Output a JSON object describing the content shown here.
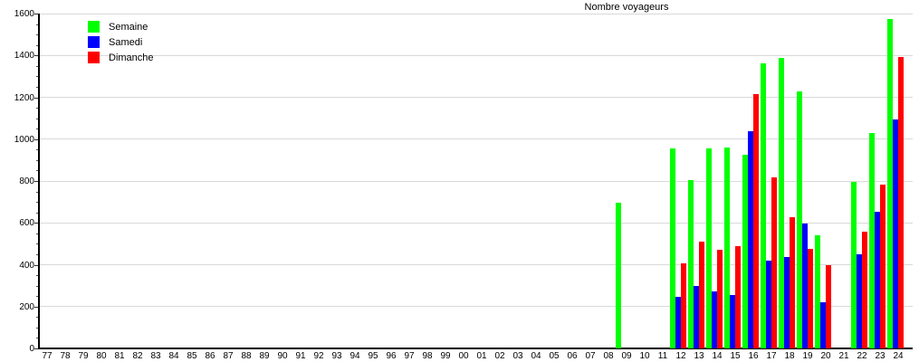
{
  "title": "Nombre voyageurs",
  "chart_data": {
    "type": "bar",
    "title": "Nombre voyageurs",
    "xlabel": "",
    "ylabel": "",
    "ylim": [
      0,
      1600
    ],
    "ytick_step": 200,
    "yminor_step": 50,
    "grid": "horizontal",
    "legend_position": "top-left",
    "grid_color": "#d9d9d9",
    "axis_color": "#000000",
    "categories": [
      "77",
      "78",
      "79",
      "80",
      "81",
      "82",
      "83",
      "84",
      "85",
      "86",
      "87",
      "88",
      "89",
      "90",
      "91",
      "92",
      "93",
      "94",
      "95",
      "96",
      "97",
      "98",
      "99",
      "00",
      "01",
      "02",
      "03",
      "04",
      "05",
      "06",
      "07",
      "08",
      "09",
      "10",
      "11",
      "12",
      "13",
      "14",
      "15",
      "16",
      "17",
      "18",
      "19",
      "20",
      "21",
      "22",
      "23",
      "24"
    ],
    "series": [
      {
        "name": "Semaine",
        "color": "#00ff00",
        "values": [
          0,
          0,
          0,
          0,
          0,
          0,
          0,
          0,
          0,
          0,
          0,
          0,
          0,
          0,
          0,
          0,
          0,
          0,
          0,
          0,
          0,
          0,
          0,
          0,
          0,
          0,
          0,
          0,
          0,
          0,
          0,
          0,
          695,
          0,
          0,
          955,
          805,
          955,
          958,
          925,
          1362,
          1390,
          1228,
          542,
          0,
          795,
          1030,
          1575
        ]
      },
      {
        "name": "Samedi",
        "color": "#0000ff",
        "values": [
          0,
          0,
          0,
          0,
          0,
          0,
          0,
          0,
          0,
          0,
          0,
          0,
          0,
          0,
          0,
          0,
          0,
          0,
          0,
          0,
          0,
          0,
          0,
          0,
          0,
          0,
          0,
          0,
          0,
          0,
          0,
          0,
          0,
          0,
          0,
          248,
          298,
          272,
          255,
          1040,
          418,
          436,
          598,
          220,
          0,
          448,
          653,
          1095
        ]
      },
      {
        "name": "Dimanche",
        "color": "#ff0000",
        "values": [
          0,
          0,
          0,
          0,
          0,
          0,
          0,
          0,
          0,
          0,
          0,
          0,
          0,
          0,
          0,
          0,
          0,
          0,
          0,
          0,
          0,
          0,
          0,
          0,
          0,
          0,
          0,
          0,
          0,
          0,
          0,
          0,
          0,
          0,
          0,
          405,
          510,
          470,
          488,
          1213,
          818,
          625,
          477,
          400,
          0,
          560,
          783,
          1392
        ]
      }
    ]
  }
}
